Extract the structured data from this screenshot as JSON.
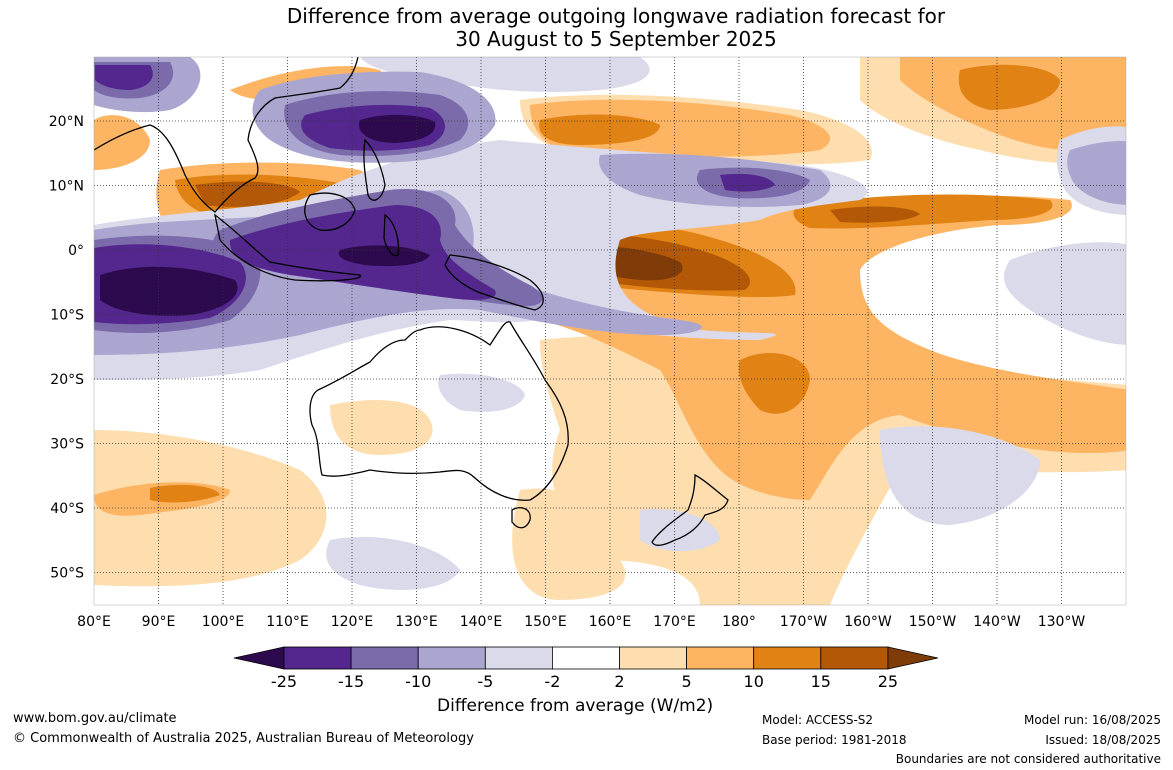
{
  "title": {
    "line1": "Difference from average outgoing longwave radiation forecast for",
    "line2": "30 August to 5 September 2025"
  },
  "map": {
    "lon_labels": [
      "80°E",
      "90°E",
      "100°E",
      "110°E",
      "120°E",
      "130°E",
      "140°E",
      "150°E",
      "160°E",
      "170°E",
      "180°",
      "170°W",
      "160°W",
      "150°W",
      "140°W",
      "130°W"
    ],
    "lat_labels": [
      "20°N",
      "10°N",
      "0°",
      "10°S",
      "20°S",
      "30°S",
      "40°S",
      "50°S"
    ]
  },
  "colorbar": {
    "ticks": [
      "-25",
      "-15",
      "-10",
      "-5",
      "-2",
      "2",
      "5",
      "10",
      "15",
      "25"
    ],
    "colors": [
      "#2d0a4e",
      "#54278f",
      "#7b6bab",
      "#aba6d0",
      "#dadaeb",
      "#ffffff",
      "#fedeaf",
      "#fdb563",
      "#e08214",
      "#b35806",
      "#7f3b08"
    ],
    "label": "Difference from average (W/m2)"
  },
  "footer": {
    "url": "www.bom.gov.au/climate",
    "copyright": "© Commonwealth of Australia 2025, Australian Bureau of Meteorology",
    "model": "Model: ACCESS-S2",
    "base_period": "Base period: 1981-2018",
    "model_run": "Model run: 16/08/2025",
    "issued": "Issued: 18/08/2025",
    "disclaimer": "Boundaries are not considered authoritative"
  }
}
